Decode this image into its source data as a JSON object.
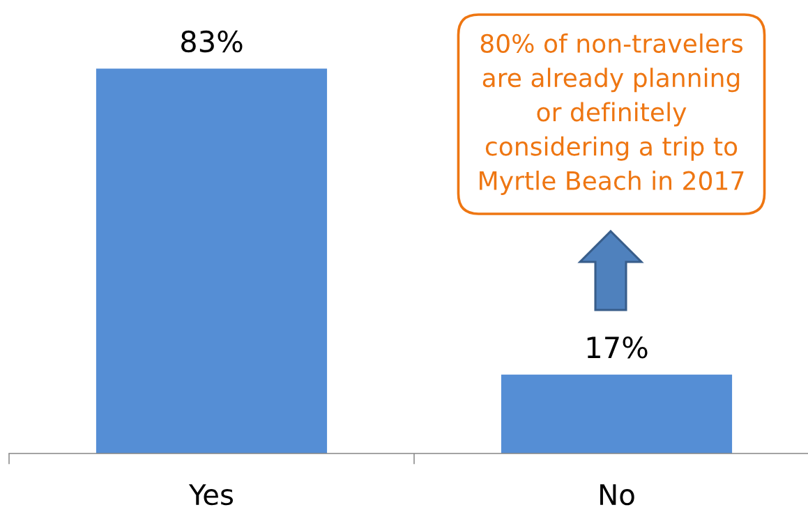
{
  "chart_data": {
    "type": "bar",
    "categories": [
      "Yes",
      "No"
    ],
    "values": [
      83,
      17
    ],
    "color": "#558ed5",
    "value_labels": [
      "83%",
      "17%"
    ],
    "tick_labels": "x",
    "annotations": [
      "80% of non-travelers\nare already planning\nor definitely\nconsidering a trip to\nMyrtle Beach in 2017"
    ]
  }
}
